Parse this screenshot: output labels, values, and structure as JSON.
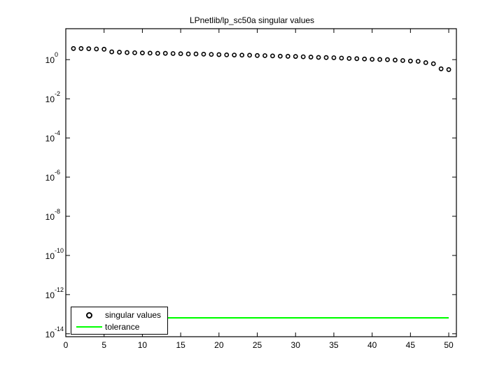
{
  "chart_data": {
    "type": "scatter",
    "title": "LPnetlib/lp_sc50a singular values",
    "xlabel": "",
    "ylabel": "",
    "xlim": [
      0,
      51
    ],
    "ylim_log10": [
      -14.15,
      1.58
    ],
    "yscale": "log",
    "grid": false,
    "legend_position": "lower left",
    "x_ticks": [
      0,
      5,
      10,
      15,
      20,
      25,
      30,
      35,
      40,
      45,
      50
    ],
    "x_tick_labels": [
      "0",
      "5",
      "10",
      "15",
      "20",
      "25",
      "30",
      "35",
      "40",
      "45",
      "50"
    ],
    "y_ticks_log10": [
      0,
      -2,
      -4,
      -6,
      -8,
      -10,
      -12,
      -14
    ],
    "y_tick_labels": [
      {
        "base": "10",
        "exp": "0"
      },
      {
        "base": "10",
        "exp": "-2"
      },
      {
        "base": "10",
        "exp": "-4"
      },
      {
        "base": "10",
        "exp": "-6"
      },
      {
        "base": "10",
        "exp": "-8"
      },
      {
        "base": "10",
        "exp": "-10"
      },
      {
        "base": "10",
        "exp": "-12"
      },
      {
        "base": "10",
        "exp": "-14"
      }
    ],
    "series": [
      {
        "name": "singular values",
        "style": "marker-circle",
        "color": "#000000",
        "x": [
          1,
          2,
          3,
          4,
          5,
          6,
          7,
          8,
          9,
          10,
          11,
          12,
          13,
          14,
          15,
          16,
          17,
          18,
          19,
          20,
          21,
          22,
          23,
          24,
          25,
          26,
          27,
          28,
          29,
          30,
          31,
          32,
          33,
          34,
          35,
          36,
          37,
          38,
          39,
          40,
          41,
          42,
          43,
          44,
          45,
          46,
          47,
          48,
          49,
          50
        ],
        "values": [
          3.7,
          3.7,
          3.6,
          3.5,
          3.4,
          2.5,
          2.4,
          2.3,
          2.25,
          2.2,
          2.15,
          2.1,
          2.1,
          2.05,
          2.0,
          1.95,
          1.95,
          1.9,
          1.85,
          1.8,
          1.75,
          1.72,
          1.7,
          1.68,
          1.62,
          1.6,
          1.55,
          1.5,
          1.48,
          1.45,
          1.4,
          1.35,
          1.3,
          1.28,
          1.25,
          1.2,
          1.15,
          1.12,
          1.08,
          1.04,
          1.02,
          1.0,
          0.95,
          0.9,
          0.85,
          0.82,
          0.7,
          0.62,
          0.34,
          0.31
        ]
      },
      {
        "name": "tolerance",
        "style": "line",
        "color": "#00ff00",
        "x": [
          1,
          50
        ],
        "values": [
          6.5e-14,
          6.5e-14
        ]
      }
    ]
  },
  "legend": {
    "items": [
      {
        "label": "singular values"
      },
      {
        "label": "tolerance"
      }
    ]
  }
}
